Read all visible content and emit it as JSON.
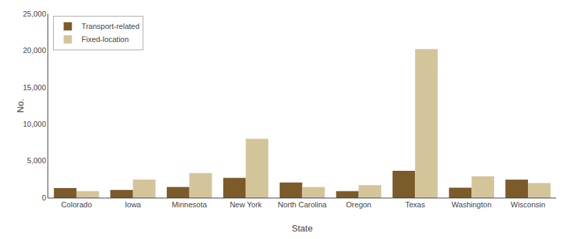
{
  "chart_data": {
    "type": "bar",
    "xlabel": "State",
    "ylabel": "No.",
    "categories": [
      "Colorado",
      "Iowa",
      "Minnesota",
      "New York",
      "North Carolina",
      "Oregon",
      "Texas",
      "Washington",
      "Wisconsin"
    ],
    "series": [
      {
        "name": "Transport-related",
        "color": "#7B5B2A",
        "values": [
          1300,
          1050,
          1450,
          2700,
          2050,
          900,
          3650,
          1350,
          2450
        ]
      },
      {
        "name": "Fixed-location",
        "color": "#D4C49A",
        "values": [
          900,
          2450,
          3350,
          8000,
          1450,
          1700,
          20200,
          2900,
          2000
        ]
      }
    ],
    "ylim": [
      0,
      25000
    ],
    "yticks": [
      0,
      {
        "value": 5000,
        "label": "5,000"
      },
      {
        "value": 10000,
        "label": "10,000"
      },
      {
        "value": 15000,
        "label": "15,000"
      },
      {
        "value": 20000,
        "label": "20,000"
      },
      {
        "value": 25000,
        "label": "25,000"
      }
    ],
    "grid": false,
    "legend": "upper left"
  }
}
